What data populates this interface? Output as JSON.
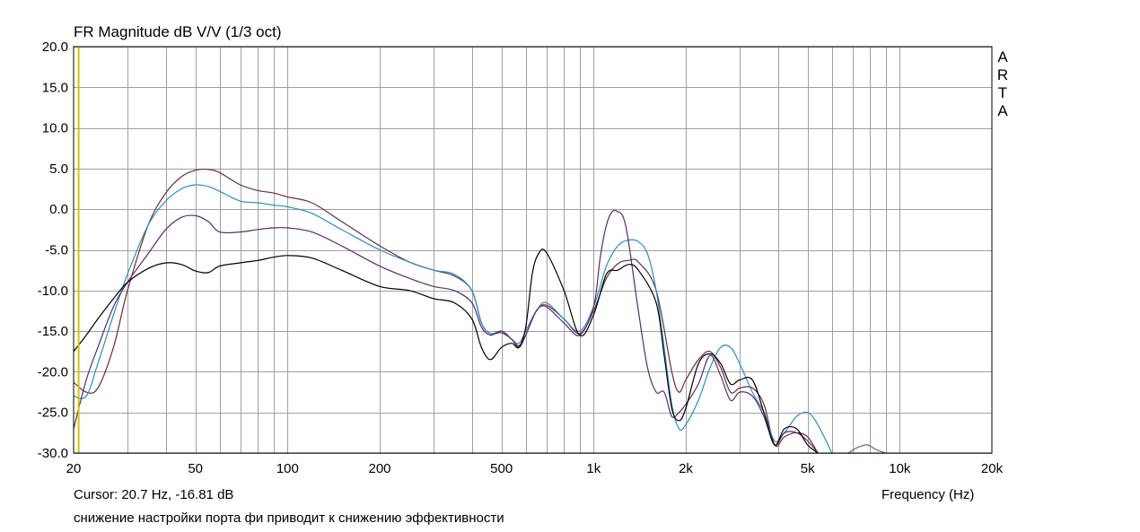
{
  "chart_data": {
    "type": "line",
    "title": "FR Magnitude dB V/V (1/3 oct)",
    "xlabel": "Frequency (Hz)",
    "x_scale": "log",
    "xlim": [
      20,
      20000
    ],
    "ylim": [
      -30,
      20
    ],
    "grid": true,
    "y_ticks": [
      "20.0",
      "15.0",
      "10.0",
      "5.0",
      "0.0",
      "-5.0",
      "-10.0",
      "-15.0",
      "-20.0",
      "-25.0",
      "-30.0"
    ],
    "y_tick_values": [
      20,
      15,
      10,
      5,
      0,
      -5,
      -10,
      -15,
      -20,
      -25,
      -30
    ],
    "x_ticks": [
      "20",
      "50",
      "100",
      "200",
      "500",
      "1k",
      "2k",
      "5k",
      "10k",
      "20k"
    ],
    "x_tick_values": [
      20,
      50,
      100,
      200,
      500,
      1000,
      2000,
      5000,
      10000,
      20000
    ],
    "cursor_x": 20.7,
    "cursor_color": "#d4c200",
    "series": [
      {
        "color": "#6b2c3a",
        "points": [
          [
            20,
            -21.3
          ],
          [
            22,
            -22.5
          ],
          [
            24,
            -22.0
          ],
          [
            27,
            -17.0
          ],
          [
            30,
            -10.0
          ],
          [
            35,
            -2.0
          ],
          [
            40,
            2.0
          ],
          [
            45,
            4.0
          ],
          [
            50,
            4.8
          ],
          [
            55,
            4.9
          ],
          [
            60,
            4.5
          ],
          [
            70,
            3.0
          ],
          [
            80,
            2.3
          ],
          [
            90,
            2.0
          ],
          [
            100,
            1.5
          ],
          [
            120,
            0.8
          ],
          [
            150,
            -1.5
          ],
          [
            200,
            -4.5
          ],
          [
            250,
            -6.5
          ],
          [
            300,
            -7.5
          ],
          [
            350,
            -8.2
          ],
          [
            400,
            -10.0
          ],
          [
            430,
            -14.0
          ],
          [
            460,
            -15.3
          ],
          [
            500,
            -15.2
          ],
          [
            540,
            -16.0
          ],
          [
            570,
            -16.8
          ],
          [
            600,
            -15.5
          ],
          [
            650,
            -12.5
          ],
          [
            700,
            -11.8
          ],
          [
            800,
            -13.5
          ],
          [
            900,
            -15.3
          ],
          [
            1000,
            -12.5
          ],
          [
            1100,
            -8.5
          ],
          [
            1200,
            -6.7
          ],
          [
            1300,
            -6.3
          ],
          [
            1400,
            -6.5
          ],
          [
            1600,
            -10.0
          ],
          [
            1800,
            -20.0
          ],
          [
            1900,
            -22.5
          ],
          [
            2000,
            -21.0
          ],
          [
            2200,
            -18.5
          ],
          [
            2400,
            -17.5
          ],
          [
            2600,
            -19.5
          ],
          [
            2800,
            -22.5
          ],
          [
            3000,
            -22.0
          ],
          [
            3300,
            -22.0
          ],
          [
            3600,
            -24.0
          ],
          [
            3900,
            -29.0
          ],
          [
            4200,
            -28.0
          ],
          [
            4600,
            -27.5
          ],
          [
            5000,
            -28.0
          ],
          [
            5400,
            -30.0
          ]
        ]
      },
      {
        "color": "#2a8fc4",
        "points": [
          [
            20,
            -23.0
          ],
          [
            22,
            -23.0
          ],
          [
            24,
            -19.0
          ],
          [
            27,
            -13.0
          ],
          [
            30,
            -8.0
          ],
          [
            35,
            -2.0
          ],
          [
            40,
            1.0
          ],
          [
            45,
            2.5
          ],
          [
            50,
            3.0
          ],
          [
            55,
            2.8
          ],
          [
            60,
            2.2
          ],
          [
            70,
            1.0
          ],
          [
            80,
            0.8
          ],
          [
            90,
            0.5
          ],
          [
            100,
            0.3
          ],
          [
            120,
            -0.5
          ],
          [
            150,
            -2.5
          ],
          [
            200,
            -5.0
          ],
          [
            250,
            -6.5
          ],
          [
            300,
            -7.5
          ],
          [
            350,
            -8.0
          ],
          [
            400,
            -10.0
          ],
          [
            430,
            -14.0
          ],
          [
            460,
            -15.3
          ],
          [
            500,
            -15.0
          ],
          [
            540,
            -16.0
          ],
          [
            570,
            -16.5
          ],
          [
            600,
            -15.0
          ],
          [
            650,
            -12.5
          ],
          [
            700,
            -11.5
          ],
          [
            800,
            -13.5
          ],
          [
            900,
            -15.0
          ],
          [
            1000,
            -12.0
          ],
          [
            1100,
            -7.0
          ],
          [
            1200,
            -4.5
          ],
          [
            1300,
            -3.8
          ],
          [
            1400,
            -4.0
          ],
          [
            1500,
            -5.5
          ],
          [
            1600,
            -10.0
          ],
          [
            1700,
            -17.0
          ],
          [
            1800,
            -24.0
          ],
          [
            1900,
            -27.0
          ],
          [
            2000,
            -26.5
          ],
          [
            2200,
            -23.5
          ],
          [
            2400,
            -19.5
          ],
          [
            2600,
            -17.0
          ],
          [
            2800,
            -17.0
          ],
          [
            3000,
            -19.0
          ],
          [
            3300,
            -22.5
          ],
          [
            3600,
            -25.0
          ],
          [
            3900,
            -28.5
          ],
          [
            4200,
            -27.5
          ],
          [
            4600,
            -25.5
          ],
          [
            5000,
            -25.0
          ],
          [
            5400,
            -26.5
          ],
          [
            6000,
            -30.0
          ]
        ]
      },
      {
        "color": "#5a2a6e",
        "points": [
          [
            20,
            -27.0
          ],
          [
            22,
            -21.0
          ],
          [
            24,
            -17.0
          ],
          [
            27,
            -12.0
          ],
          [
            30,
            -9.0
          ],
          [
            35,
            -5.5
          ],
          [
            40,
            -2.5
          ],
          [
            45,
            -1.0
          ],
          [
            50,
            -0.8
          ],
          [
            55,
            -1.5
          ],
          [
            60,
            -2.8
          ],
          [
            70,
            -2.8
          ],
          [
            80,
            -2.5
          ],
          [
            90,
            -2.3
          ],
          [
            100,
            -2.3
          ],
          [
            120,
            -2.8
          ],
          [
            150,
            -4.5
          ],
          [
            200,
            -7.0
          ],
          [
            250,
            -8.5
          ],
          [
            300,
            -9.5
          ],
          [
            350,
            -10.0
          ],
          [
            400,
            -11.5
          ],
          [
            430,
            -14.5
          ],
          [
            460,
            -15.5
          ],
          [
            500,
            -15.0
          ],
          [
            540,
            -16.0
          ],
          [
            570,
            -17.0
          ],
          [
            600,
            -15.5
          ],
          [
            650,
            -12.5
          ],
          [
            700,
            -12.0
          ],
          [
            800,
            -14.0
          ],
          [
            900,
            -15.5
          ],
          [
            1000,
            -12.0
          ],
          [
            1050,
            -6.0
          ],
          [
            1100,
            -2.0
          ],
          [
            1150,
            -0.3
          ],
          [
            1200,
            -0.3
          ],
          [
            1250,
            -1.0
          ],
          [
            1300,
            -4.0
          ],
          [
            1400,
            -12.5
          ],
          [
            1500,
            -19.5
          ],
          [
            1600,
            -22.5
          ],
          [
            1700,
            -22.5
          ],
          [
            1800,
            -25.5
          ],
          [
            1900,
            -25.0
          ],
          [
            2000,
            -24.0
          ],
          [
            2200,
            -21.5
          ],
          [
            2400,
            -18.0
          ],
          [
            2600,
            -20.5
          ],
          [
            2800,
            -23.5
          ],
          [
            3000,
            -22.5
          ],
          [
            3300,
            -23.0
          ],
          [
            3600,
            -25.5
          ],
          [
            3900,
            -29.0
          ],
          [
            4200,
            -27.5
          ],
          [
            4600,
            -27.5
          ],
          [
            5000,
            -28.5
          ],
          [
            5400,
            -30.0
          ]
        ]
      },
      {
        "color": "#000000",
        "points": [
          [
            20,
            -17.5
          ],
          [
            22,
            -15.5
          ],
          [
            24,
            -13.5
          ],
          [
            27,
            -11.0
          ],
          [
            30,
            -9.0
          ],
          [
            35,
            -7.3
          ],
          [
            40,
            -6.6
          ],
          [
            45,
            -6.8
          ],
          [
            50,
            -7.6
          ],
          [
            55,
            -7.8
          ],
          [
            60,
            -7.0
          ],
          [
            70,
            -6.6
          ],
          [
            80,
            -6.3
          ],
          [
            90,
            -5.9
          ],
          [
            100,
            -5.7
          ],
          [
            120,
            -6.0
          ],
          [
            150,
            -7.5
          ],
          [
            200,
            -9.5
          ],
          [
            250,
            -10.0
          ],
          [
            300,
            -11.0
          ],
          [
            350,
            -11.5
          ],
          [
            400,
            -13.5
          ],
          [
            430,
            -17.0
          ],
          [
            460,
            -18.5
          ],
          [
            500,
            -17.0
          ],
          [
            540,
            -16.5
          ],
          [
            570,
            -17.0
          ],
          [
            600,
            -14.5
          ],
          [
            630,
            -8.0
          ],
          [
            660,
            -5.5
          ],
          [
            700,
            -5.3
          ],
          [
            800,
            -10.0
          ],
          [
            900,
            -15.5
          ],
          [
            1000,
            -13.0
          ],
          [
            1100,
            -8.0
          ],
          [
            1200,
            -7.5
          ],
          [
            1300,
            -6.8
          ],
          [
            1400,
            -7.5
          ],
          [
            1600,
            -11.5
          ],
          [
            1700,
            -18.0
          ],
          [
            1800,
            -24.5
          ],
          [
            1900,
            -26.0
          ],
          [
            2000,
            -24.5
          ],
          [
            2200,
            -19.0
          ],
          [
            2400,
            -17.8
          ],
          [
            2600,
            -19.0
          ],
          [
            2800,
            -21.5
          ],
          [
            3000,
            -21.0
          ],
          [
            3300,
            -21.0
          ],
          [
            3600,
            -25.0
          ],
          [
            3900,
            -29.0
          ],
          [
            4200,
            -27.0
          ],
          [
            4600,
            -27.0
          ],
          [
            5000,
            -29.0
          ],
          [
            5400,
            -30.0
          ]
        ]
      },
      {
        "color": "#8a5a74",
        "points": [
          [
            6800,
            -30.0
          ],
          [
            7200,
            -29.4
          ],
          [
            7800,
            -29.0
          ],
          [
            8400,
            -29.6
          ],
          [
            9000,
            -30.0
          ]
        ]
      }
    ]
  },
  "cursor_readout": "Cursor: 20.7 Hz, -16.81 dB",
  "caption": "снижение настройки порта фи приводит к снижению эффективности",
  "watermark": [
    "A",
    "R",
    "T",
    "A"
  ]
}
